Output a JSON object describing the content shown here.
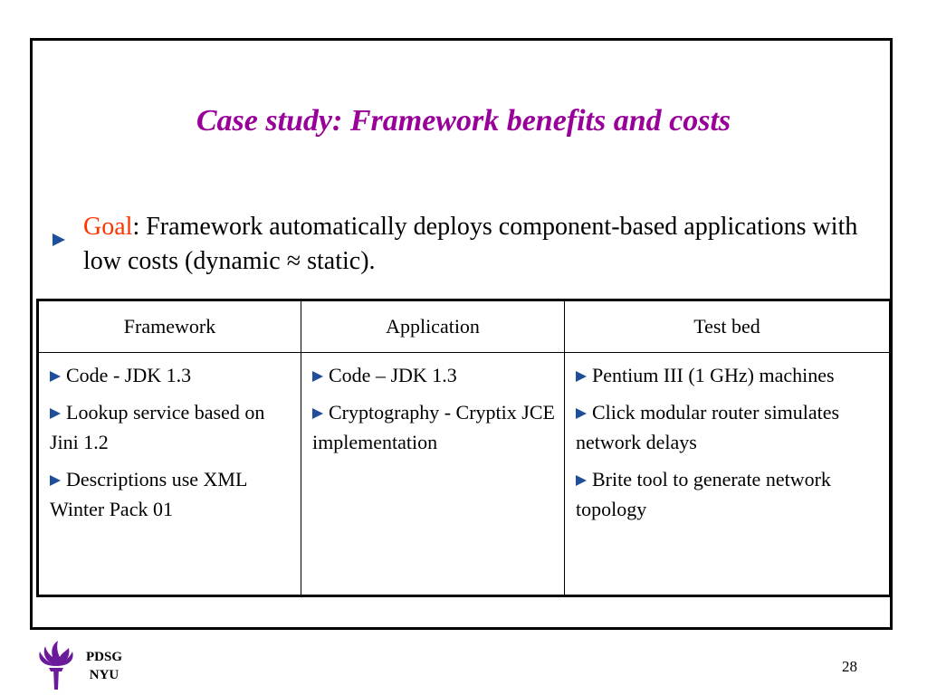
{
  "slide": {
    "title": "Case study: Framework benefits and costs",
    "goal": {
      "label": "Goal",
      "text": ": Framework automatically deploys component-based applications with low costs (dynamic ≈ static)."
    },
    "table": {
      "headers": [
        "Framework",
        "Application",
        "Test bed"
      ],
      "columns": [
        [
          "Code - JDK 1.3",
          "Lookup service based on Jini 1.2",
          "Descriptions use XML Winter Pack 01"
        ],
        [
          "Code – JDK 1.3",
          "Cryptography - Cryptix JCE implementation"
        ],
        [
          "Pentium III (1 GHz) machines",
          "Click modular router simulates network delays",
          "Brite tool to generate network topology"
        ]
      ]
    },
    "logo": {
      "line1": "PDSG",
      "line2": "NYU"
    },
    "page_number": "28"
  },
  "colors": {
    "title": "#990099",
    "goal_label": "#ff3300",
    "bullet": "#1f4e9a",
    "logo": "#6a1b9a"
  },
  "icons": {
    "bullet": "triangle-bullet-icon",
    "logo": "nyu-torch-logo-icon"
  }
}
